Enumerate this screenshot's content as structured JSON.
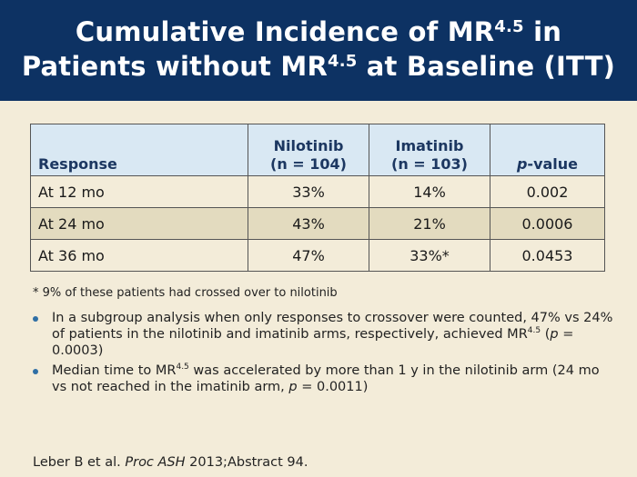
{
  "title": {
    "line1_pre": "Cumulative Incidence of MR",
    "line1_sup": "4.5",
    "line1_post": " in",
    "line2_pre": "Patients without MR",
    "line2_sup": "4.5",
    "line2_post": " at Baseline (ITT)"
  },
  "table": {
    "headers": {
      "response": "Response",
      "nilotinib": "Nilotinib",
      "nilotinib_n": "(n = 104)",
      "imatinib": "Imatinib",
      "imatinib_n": "(n = 103)",
      "pvalue_italic": "p",
      "pvalue_rest": "-value"
    },
    "rows": [
      {
        "label": "At 12 mo",
        "nilotinib": "33%",
        "imatinib": "14%",
        "p": "0.002"
      },
      {
        "label": "At 24 mo",
        "nilotinib": "43%",
        "imatinib": "21%",
        "p": "0.0006"
      },
      {
        "label": "At 36 mo",
        "nilotinib": "47%",
        "imatinib": "33%*",
        "p": "0.0453"
      }
    ]
  },
  "footnote": "* 9% of these patients had crossed over to nilotinib",
  "bullets": {
    "b1_a": "In a subgroup analysis when only responses to crossover were counted, 47% vs 24% of patients in the nilotinib and imatinib arms, respectively, achieved MR",
    "b1_sup": "4.5",
    "b1_b": " (",
    "b1_p": "p",
    "b1_c": " = 0.0003)",
    "b2_a": "Median time to MR",
    "b2_sup": "4.5",
    "b2_b": " was accelerated by more than 1 y in the nilotinib arm (24 mo vs not reached in the imatinib arm, ",
    "b2_p": "p",
    "b2_c": " = 0.0011)"
  },
  "reference": {
    "authors": "Leber B et al. ",
    "journal": "Proc ASH",
    "rest": " 2013;Abstract 94."
  },
  "colors": {
    "header_bg": "#0d3263",
    "page_bg": "#f3ecd9",
    "table_header_bg": "#d9e8f3",
    "row_alt_bg": "#e3dbbf",
    "bullet": "#2f6fa5"
  }
}
